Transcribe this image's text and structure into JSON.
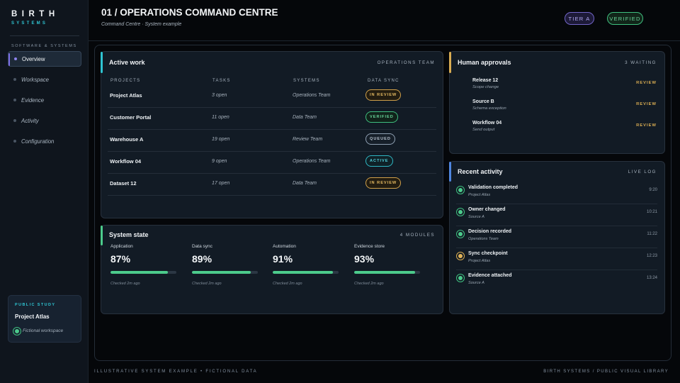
{
  "sidebar": {
    "logo": "BIRTH",
    "logo_sub": "SYSTEMS",
    "section": "SOFTWARE & SYSTEMS",
    "items": [
      {
        "label": "Overview"
      },
      {
        "label": "Workspace"
      },
      {
        "label": "Evidence"
      },
      {
        "label": "Activity"
      },
      {
        "label": "Configuration"
      }
    ],
    "study": {
      "kicker": "PUBLIC STUDY",
      "title": "Project Atlas",
      "note": "Fictional workspace"
    }
  },
  "header": {
    "title": "01 / OPERATIONS COMMAND CENTRE",
    "subtitle": "Command Centre · System example",
    "tier": "TIER A",
    "status": "VERIFIED"
  },
  "active_work": {
    "title": "Active work",
    "meta": "OPERATIONS TEAM",
    "columns": [
      "PROJECTS",
      "TASKS",
      "SYSTEMS",
      "DATA SYNC"
    ],
    "rows": [
      {
        "project": "Project Atlas",
        "tasks": "3 open",
        "system": "Operations Team",
        "sync": "IN REVIEW"
      },
      {
        "project": "Customer Portal",
        "tasks": "11 open",
        "system": "Data Team",
        "sync": "VERIFIED"
      },
      {
        "project": "Warehouse A",
        "tasks": "19 open",
        "system": "Review Team",
        "sync": "QUEUED"
      },
      {
        "project": "Workflow 04",
        "tasks": "9 open",
        "system": "Operations Team",
        "sync": "ACTIVE"
      },
      {
        "project": "Dataset 12",
        "tasks": "17 open",
        "system": "Data Team",
        "sync": "IN REVIEW"
      }
    ]
  },
  "system_state": {
    "title": "System state",
    "meta": "4 MODULES",
    "metrics": [
      {
        "label": "Application",
        "value": "87%",
        "fill": 0.87,
        "note": "Checked 2m ago"
      },
      {
        "label": "Data sync",
        "value": "89%",
        "fill": 0.89,
        "note": "Checked 2m ago"
      },
      {
        "label": "Automation",
        "value": "91%",
        "fill": 0.91,
        "note": "Checked 2m ago"
      },
      {
        "label": "Evidence store",
        "value": "93%",
        "fill": 0.93,
        "note": "Checked 2m ago"
      }
    ]
  },
  "approvals": {
    "title": "Human approvals",
    "meta": "3 WAITING",
    "items": [
      {
        "title": "Release 12",
        "sub": "Scope change",
        "action": "REVIEW"
      },
      {
        "title": "Source B",
        "sub": "Schema exception",
        "action": "REVIEW"
      },
      {
        "title": "Workflow 04",
        "sub": "Send output",
        "action": "REVIEW"
      }
    ]
  },
  "activity": {
    "title": "Recent activity",
    "meta": "LIVE LOG",
    "items": [
      {
        "title": "Validation completed",
        "sub": "Project Atlas",
        "time": "9:20",
        "state": "ok"
      },
      {
        "title": "Owner changed",
        "sub": "Source A",
        "time": "10:21",
        "state": "ok"
      },
      {
        "title": "Decision recorded",
        "sub": "Operations Team",
        "time": "11:22",
        "state": "ok"
      },
      {
        "title": "Sync checkpoint",
        "sub": "Project Atlas",
        "time": "12:23",
        "state": "warn"
      },
      {
        "title": "Evidence attached",
        "sub": "Source A",
        "time": "13:24",
        "state": "ok"
      }
    ]
  },
  "footer": {
    "left": "ILLUSTRATIVE SYSTEM EXAMPLE  •  FICTIONAL DATA",
    "right": "BIRTH SYSTEMS / PUBLIC VISUAL LIBRARY"
  },
  "colors": {
    "accent_purple": "#7b6ee6",
    "accent_cyan": "#2fc4d2",
    "accent_green": "#4ccb8c",
    "accent_amber": "#d8ac52",
    "accent_blue": "#4f86e0"
  }
}
